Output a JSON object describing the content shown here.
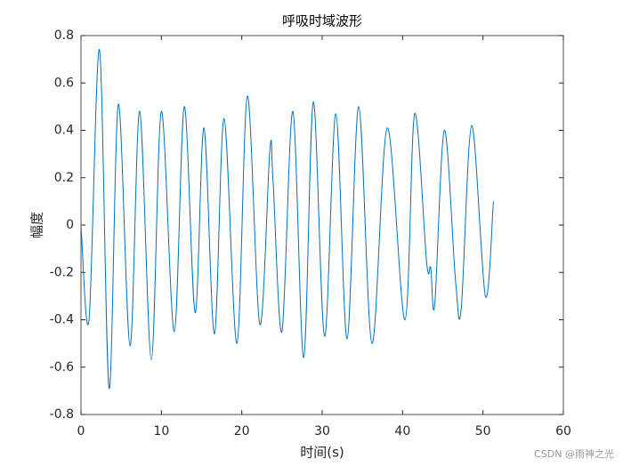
{
  "chart_data": {
    "type": "line",
    "title": "呼吸时域波形",
    "x_label": "时间(s)",
    "y_label": "幅度",
    "watermark": "CSDN @雨神之光",
    "xlim": [
      0,
      60
    ],
    "ylim": [
      -0.8,
      0.8
    ],
    "xticks": [
      0,
      10,
      20,
      30,
      40,
      50,
      60
    ],
    "yticks": [
      -0.8,
      -0.6,
      -0.4,
      -0.2,
      0,
      0.2,
      0.4,
      0.6,
      0.8
    ],
    "grid": false,
    "series": [
      {
        "color": "#0072bd",
        "x": [
          0,
          1.0,
          2.3,
          3.5,
          4.65,
          6.1,
          7.3,
          8.75,
          10.0,
          11.6,
          12.85,
          14.2,
          15.3,
          16.6,
          17.8,
          19.4,
          20.7,
          22.25,
          23.5,
          23.9,
          25.0,
          26.35,
          27.7,
          28.9,
          30.3,
          31.7,
          33.1,
          34.55,
          36.2,
          38.1,
          40.3,
          41.5,
          43.0,
          43.5,
          44.0,
          45.2,
          46.6,
          47.3,
          48.6,
          50.3,
          51.3
        ],
        "values": [
          0.0,
          -0.4,
          0.74,
          -0.69,
          0.51,
          -0.51,
          0.48,
          -0.57,
          0.48,
          -0.45,
          0.5,
          -0.37,
          0.41,
          -0.46,
          0.45,
          -0.5,
          0.545,
          -0.42,
          0.32,
          0.18,
          -0.45,
          0.48,
          -0.56,
          0.52,
          -0.47,
          0.47,
          -0.48,
          0.5,
          -0.5,
          0.41,
          -0.4,
          0.47,
          -0.16,
          -0.18,
          -0.335,
          0.4,
          -0.24,
          -0.35,
          0.42,
          -0.3,
          0.1
        ]
      }
    ]
  }
}
